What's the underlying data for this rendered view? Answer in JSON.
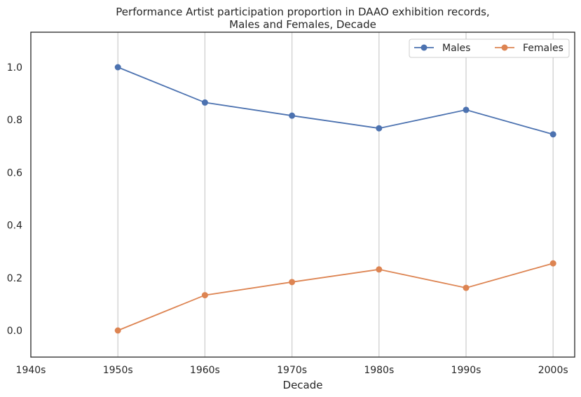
{
  "chart_data": {
    "type": "line",
    "title_line1": "Performance Artist participation proportion in DAAO exhibition records,",
    "title_line2": "Males and Females, Decade",
    "xlabel": "Decade",
    "ylabel": "",
    "categories": [
      "1940s",
      "1950s",
      "1960s",
      "1970s",
      "1980s",
      "1990s",
      "2000s"
    ],
    "yticks": [
      "0.0",
      "0.2",
      "0.4",
      "0.6",
      "0.8",
      "1.0"
    ],
    "ylim": [
      -0.1,
      1.13
    ],
    "grid": "vertical",
    "legend_placement": "top-right",
    "series": [
      {
        "name": "Males",
        "color": "#4c72b0",
        "x": [
          "1950s",
          "1960s",
          "1970s",
          "1980s",
          "1990s",
          "2000s"
        ],
        "values": [
          1.0,
          0.866,
          0.816,
          0.768,
          0.838,
          0.745
        ]
      },
      {
        "name": "Females",
        "color": "#dd8452",
        "x": [
          "1950s",
          "1960s",
          "1970s",
          "1980s",
          "1990s",
          "2000s"
        ],
        "values": [
          0.0,
          0.134,
          0.184,
          0.232,
          0.162,
          0.255
        ]
      }
    ]
  }
}
